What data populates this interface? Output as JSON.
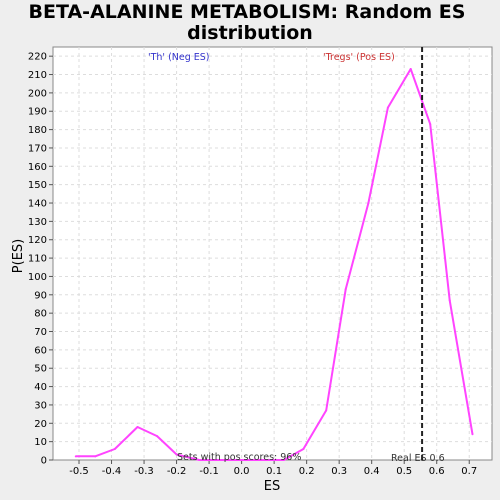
{
  "chart_data": {
    "type": "line",
    "title_line1": "BETA-ALANINE METABOLISM: Random ES",
    "title_line2": "distribution",
    "xlabel": "ES",
    "ylabel": "P(ES)",
    "xlim": [
      -0.58,
      0.77
    ],
    "ylim": [
      0,
      225
    ],
    "xticks": [
      -0.5,
      -0.4,
      -0.3,
      -0.2,
      -0.1,
      0.0,
      0.1,
      0.2,
      0.3,
      0.4,
      0.5,
      0.6,
      0.7
    ],
    "xtick_labels": [
      "-0.5",
      "-0.4",
      "-0.3",
      "-0.2",
      "-0.1",
      "0.0",
      "0.1",
      "0.2",
      "0.3",
      "0.4",
      "0.5",
      "0.6",
      "0.7"
    ],
    "yticks": [
      0,
      10,
      20,
      30,
      40,
      50,
      60,
      70,
      80,
      90,
      100,
      110,
      120,
      130,
      140,
      150,
      160,
      170,
      180,
      190,
      200,
      210,
      220
    ],
    "grid": true,
    "series": [
      {
        "color": "#ff44ff",
        "x": [
          -0.51,
          -0.45,
          -0.39,
          -0.32,
          -0.26,
          -0.2,
          -0.13,
          -0.07,
          0.0,
          0.07,
          0.13,
          0.19,
          0.26,
          0.32,
          0.39,
          0.45,
          0.52,
          0.58,
          0.64,
          0.71
        ],
        "y": [
          2,
          2,
          6,
          18,
          13,
          3,
          0,
          0,
          0,
          0,
          0,
          6,
          27,
          93,
          140,
          192,
          213,
          183,
          87,
          14
        ]
      }
    ],
    "vline": {
      "x": 0.555,
      "style": "dashed",
      "color": "#222222"
    },
    "annotations": {
      "neg_label": "'Th' (Neg ES)",
      "pos_label": "'Tregs' (Pos ES)",
      "pos_scores": "Sets with pos scores: 96%",
      "real_es": "Real ES 0.6"
    },
    "colors": {
      "neg_label": "#3333cc",
      "pos_label": "#cc3333",
      "line": "#ff44ff",
      "background": "#eeeeee",
      "plot_background": "#ffffff"
    }
  }
}
